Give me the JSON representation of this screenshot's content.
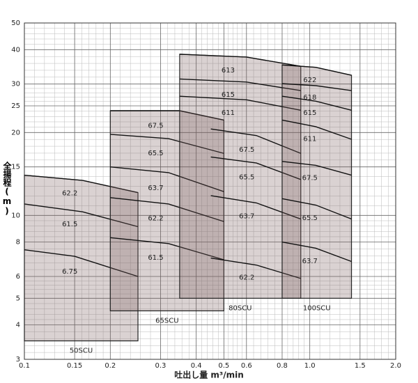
{
  "chart_data": {
    "type": "pump-selection",
    "xlabel": "吐出し量  m³/min",
    "ylabel": "全揚程(m)",
    "xlim": [
      0.1,
      2
    ],
    "ylim": [
      3,
      50
    ],
    "log": true,
    "grid": true,
    "color": "#7a5f5f",
    "xticks": [
      0.1,
      0.15,
      0.2,
      0.3,
      0.4,
      0.5,
      0.6,
      0.8,
      {
        "value": 1,
        "label": "1.0"
      },
      1.5,
      {
        "value": 2,
        "label": "2.0"
      }
    ],
    "yticks": [
      3,
      4,
      5,
      6,
      8,
      10,
      15,
      20,
      25,
      30,
      40,
      50
    ],
    "series": [
      {
        "name": "50SCU",
        "xrange": [
          0.1,
          0.25
        ],
        "bottom": 3.5,
        "curves": [
          {
            "label": "62.2",
            "x": [
              0.1,
              0.16,
              0.25
            ],
            "y": [
              14,
              13.4,
              12.1
            ]
          },
          {
            "label": "61.5",
            "x": [
              0.1,
              0.16,
              0.25
            ],
            "y": [
              11,
              10.3,
              9.1
            ]
          },
          {
            "label": "6.75",
            "x": [
              0.1,
              0.15,
              0.25
            ],
            "y": [
              7.5,
              7.1,
              6.0
            ]
          }
        ]
      },
      {
        "name": "65SCU",
        "xrange": [
          0.2,
          0.5
        ],
        "bottom": 4.5,
        "curves": [
          {
            "label": "67.5",
            "x": [
              0.2,
              0.35,
              0.5
            ],
            "y": [
              24,
              24,
              22.2
            ]
          },
          {
            "label": "65.5",
            "x": [
              0.2,
              0.32,
              0.5
            ],
            "y": [
              19.7,
              19.0,
              16.8
            ]
          },
          {
            "label": "63.7",
            "x": [
              0.2,
              0.32,
              0.5
            ],
            "y": [
              15,
              14.3,
              12.2
            ]
          },
          {
            "label": "62.2",
            "x": [
              0.2,
              0.32,
              0.5
            ],
            "y": [
              11.6,
              11.0,
              9.5
            ]
          },
          {
            "label": "61.5",
            "x": [
              0.2,
              0.32,
              0.5
            ],
            "y": [
              8.3,
              7.9,
              6.9
            ]
          }
        ]
      },
      {
        "name": "80SCU",
        "xrange": [
          0.35,
          0.93
        ],
        "bottom": 5,
        "curves": [
          {
            "label": "613",
            "x": [
              0.35,
              0.6,
              0.93
            ],
            "y": [
              38.5,
              37.6,
              34.8
            ]
          },
          {
            "label": "615",
            "x": [
              0.35,
              0.6,
              0.93
            ],
            "y": [
              31.3,
              30.5,
              28.4
            ]
          },
          {
            "label": "611",
            "x": [
              0.35,
              0.6,
              0.93
            ],
            "y": [
              27.1,
              26.3,
              24.1
            ]
          },
          {
            "label": "67.5",
            "x": [
              0.45,
              0.65,
              0.93
            ],
            "y": [
              20.6,
              19.5,
              16.8
            ]
          },
          {
            "label": "65.5",
            "x": [
              0.45,
              0.65,
              0.93
            ],
            "y": [
              16.3,
              15.5,
              13.5
            ]
          },
          {
            "label": "63.7",
            "x": [
              0.45,
              0.65,
              0.93
            ],
            "y": [
              11.8,
              11.1,
              9.7
            ]
          },
          {
            "label": "62.2",
            "x": [
              0.45,
              0.65,
              0.93
            ],
            "y": [
              7.0,
              6.6,
              5.9
            ]
          }
        ]
      },
      {
        "name": "100SCU",
        "xrange": [
          0.8,
          1.4
        ],
        "bottom": 5,
        "curves": [
          {
            "label": "622",
            "x": [
              0.8,
              1.05,
              1.4
            ],
            "y": [
              35.2,
              34.5,
              32.3
            ]
          },
          {
            "label": "618",
            "x": [
              0.8,
              1.05,
              1.4
            ],
            "y": [
              30.1,
              29.6,
              28.4
            ]
          },
          {
            "label": "615",
            "x": [
              0.8,
              1.05,
              1.4
            ],
            "y": [
              27.1,
              26,
              24.1
            ]
          },
          {
            "label": "611",
            "x": [
              0.8,
              1.05,
              1.4
            ],
            "y": [
              22.2,
              21,
              18.9
            ]
          },
          {
            "label": "67.5",
            "x": [
              0.8,
              1.05,
              1.4
            ],
            "y": [
              15.7,
              15.2,
              14.0
            ]
          },
          {
            "label": "65.5",
            "x": [
              0.8,
              1.05,
              1.4
            ],
            "y": [
              11.5,
              10.9,
              9.7
            ]
          },
          {
            "label": "63.7",
            "x": [
              0.8,
              1.05,
              1.4
            ],
            "y": [
              8.0,
              7.6,
              6.8
            ]
          }
        ]
      }
    ]
  }
}
